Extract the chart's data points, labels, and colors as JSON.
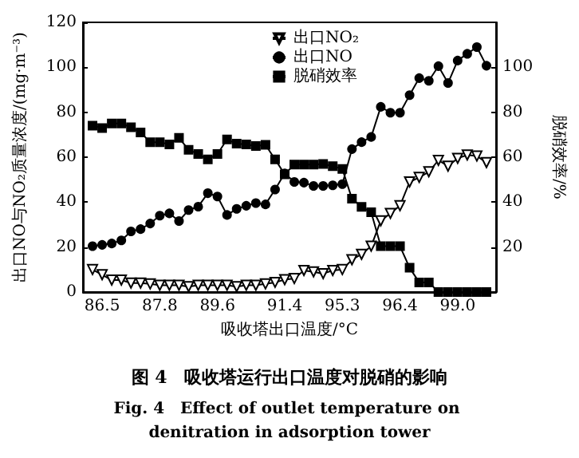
{
  "chart_data": {
    "type": "line",
    "title": "图 4　吸收塔运行出口温度对脱硝的影响",
    "subtitle": "Fig. 4　Effect of outlet temperature on denitration in adsorption tower",
    "xlabel": "吸收塔出口温度/°C",
    "ylabel": "出口NO与NO₂质量浓度/(mg·m⁻³)",
    "y2label": "脱硝效率/%",
    "categories": [
      null,
      "86.5",
      null,
      null,
      null,
      null,
      null,
      "87.8",
      null,
      null,
      null,
      null,
      null,
      "89.6",
      null,
      null,
      null,
      null,
      null,
      null,
      "91.4",
      null,
      null,
      null,
      null,
      null,
      "95.3",
      null,
      null,
      null,
      null,
      null,
      "96.4",
      null,
      null,
      null,
      null,
      null,
      "99.0",
      null,
      null,
      null
    ],
    "series": [
      {
        "name": "出口NO₂",
        "color": "#000000",
        "marker": "triangle",
        "values": [
          10,
          7.7,
          5.3,
          5.3,
          4,
          4,
          3.6,
          3,
          3,
          3,
          2.4,
          3,
          3,
          3,
          3,
          2.4,
          3,
          3,
          3.6,
          4.3,
          5.5,
          6,
          9.6,
          9,
          8.2,
          9.6,
          10,
          14.4,
          16.8,
          20.4,
          31.7,
          35,
          38.4,
          49,
          51,
          53.5,
          58.6,
          56,
          59.5,
          61,
          60.5,
          57.6
        ]
      },
      {
        "name": "出口NO",
        "color": "#000000",
        "marker": "circle",
        "values": [
          20.4,
          21,
          21.6,
          23,
          27,
          28,
          30.5,
          34,
          35,
          31.6,
          36.5,
          38,
          44,
          42.5,
          34.3,
          37,
          38.4,
          39.6,
          39,
          45.6,
          52.8,
          49,
          48.7,
          47.2,
          47.2,
          47.5,
          48,
          63.6,
          66.7,
          69,
          82.4,
          79.8,
          79.8,
          87.6,
          95.2,
          94,
          100.5,
          93,
          103,
          106,
          109,
          100.7
        ]
      },
      {
        "name": "脱硝效率",
        "color": "#000000",
        "marker": "square",
        "axis": "y2",
        "values": [
          74,
          73,
          75,
          75,
          73.3,
          71,
          66.7,
          66.7,
          65.7,
          68.6,
          63.3,
          61.4,
          59,
          61.4,
          67.9,
          66,
          65.7,
          65,
          65.5,
          59,
          52.4,
          56.7,
          56.7,
          56.7,
          57,
          56,
          54.8,
          41.5,
          37.9,
          35.5,
          20.4,
          20.4,
          20.4,
          10.8,
          4.3,
          4.3,
          0,
          0,
          0,
          0,
          0,
          0
        ]
      }
    ],
    "ylim": [
      0,
      120
    ],
    "yticks": [
      0,
      20,
      40,
      60,
      80,
      100,
      120
    ],
    "y2lim": [
      0,
      120
    ],
    "y2ticks": [
      20,
      40,
      60,
      80,
      100
    ],
    "legend": "top",
    "grid": false
  }
}
